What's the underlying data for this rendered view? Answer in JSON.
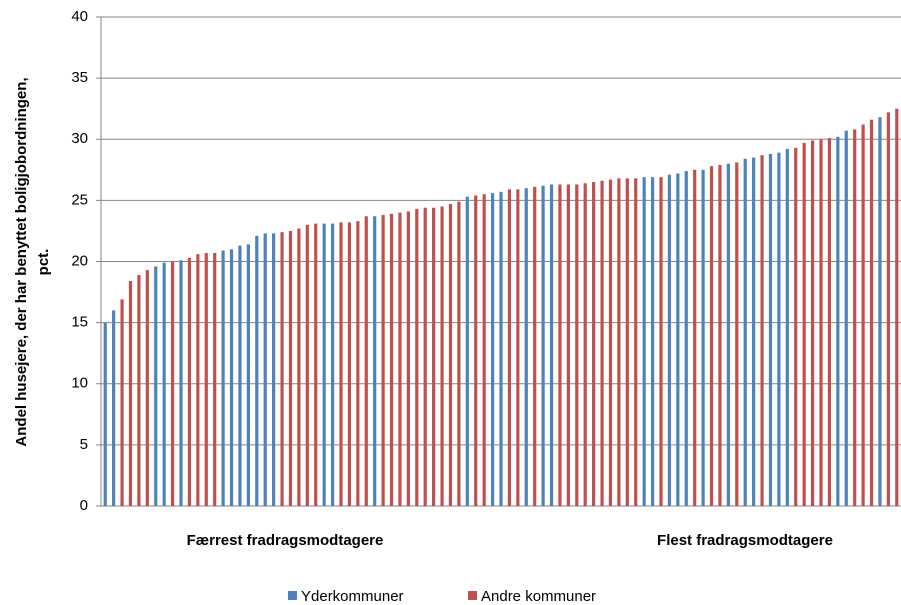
{
  "chart_data": {
    "type": "bar",
    "y_label": [
      "Andel husejere, der har benyttet boligjobordningen,",
      "pct."
    ],
    "annotations": [
      "Færrest fradragsmodtagere",
      "Flest fradragsmodtagere"
    ],
    "categories": [
      null,
      null,
      null,
      null,
      null,
      null,
      null,
      null,
      null,
      null,
      null,
      null,
      null,
      null,
      null,
      null,
      null,
      null,
      null,
      null,
      null,
      null,
      null,
      null,
      null,
      null,
      null,
      null,
      null,
      null,
      null,
      null,
      null,
      null,
      null,
      null,
      null,
      null,
      null,
      null,
      null,
      null,
      null,
      null,
      null,
      null,
      null,
      null,
      null,
      null,
      null,
      null,
      null,
      null,
      null,
      null,
      null,
      null,
      null,
      null,
      null,
      null,
      null,
      null,
      null,
      null,
      null,
      null,
      null,
      null,
      null,
      null,
      null,
      null,
      null,
      null,
      null,
      null,
      null,
      null,
      null,
      null,
      null,
      null,
      null,
      null,
      null,
      null,
      null,
      null,
      null,
      null,
      null,
      null,
      null
    ],
    "series": [
      {
        "name": "Yderkommuner",
        "color": "#4f81bd",
        "values": [
          15.0,
          16.0,
          null,
          null,
          null,
          null,
          19.6,
          19.9,
          null,
          20.1,
          null,
          null,
          null,
          null,
          20.9,
          21.0,
          21.3,
          21.4,
          22.1,
          22.3,
          22.3,
          null,
          null,
          null,
          null,
          null,
          23.1,
          23.1,
          null,
          null,
          null,
          null,
          23.7,
          null,
          null,
          null,
          null,
          null,
          null,
          null,
          null,
          null,
          null,
          25.3,
          null,
          null,
          25.6,
          25.7,
          null,
          null,
          26.0,
          null,
          26.2,
          26.3,
          null,
          null,
          null,
          null,
          null,
          null,
          null,
          null,
          null,
          null,
          26.9,
          26.9,
          null,
          27.1,
          27.2,
          27.4,
          null,
          27.5,
          null,
          null,
          28.0,
          null,
          28.4,
          28.5,
          null,
          28.8,
          28.9,
          29.2,
          null,
          null,
          null,
          null,
          null,
          30.2,
          30.7,
          null,
          null,
          null,
          31.8,
          null,
          null
        ]
      },
      {
        "name": "Andre kommuner",
        "color": "#c0504d",
        "values": [
          null,
          null,
          16.9,
          18.4,
          18.9,
          19.3,
          null,
          null,
          20.0,
          null,
          20.3,
          20.6,
          20.7,
          20.7,
          null,
          null,
          null,
          null,
          null,
          null,
          null,
          22.4,
          22.5,
          22.7,
          23.0,
          23.1,
          null,
          null,
          23.2,
          23.2,
          23.3,
          23.7,
          null,
          23.8,
          23.9,
          24.0,
          24.1,
          24.3,
          24.4,
          24.4,
          24.5,
          24.7,
          24.9,
          null,
          25.4,
          25.5,
          null,
          null,
          25.9,
          25.9,
          null,
          26.1,
          null,
          null,
          26.3,
          26.3,
          26.3,
          26.4,
          26.5,
          26.6,
          26.7,
          26.8,
          26.8,
          26.8,
          null,
          null,
          26.9,
          null,
          null,
          null,
          27.5,
          null,
          27.8,
          27.9,
          null,
          28.1,
          null,
          null,
          28.7,
          null,
          null,
          null,
          29.3,
          29.7,
          29.9,
          30.0,
          30.1,
          null,
          null,
          30.8,
          31.2,
          31.6,
          null,
          32.2,
          32.5
        ]
      }
    ],
    "ylim": [
      0,
      40
    ],
    "yticks": [
      0,
      5,
      10,
      15,
      20,
      25,
      30,
      35,
      40
    ],
    "grid": true,
    "legend": "bottom"
  }
}
